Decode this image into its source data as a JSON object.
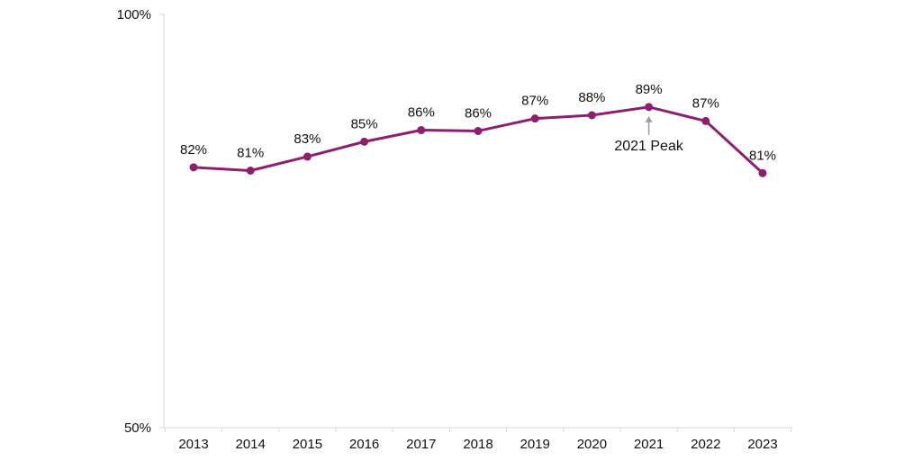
{
  "chart_data": {
    "type": "line",
    "title": "",
    "xlabel": "",
    "ylabel": "",
    "categories": [
      "2013",
      "2014",
      "2015",
      "2016",
      "2017",
      "2018",
      "2019",
      "2020",
      "2021",
      "2022",
      "2023"
    ],
    "series": [
      {
        "values": [
          81.5,
          81.1,
          82.8,
          84.6,
          86.0,
          85.9,
          87.4,
          87.8,
          88.8,
          87.1,
          80.8
        ],
        "labels": [
          "82%",
          "81%",
          "83%",
          "85%",
          "86%",
          "86%",
          "87%",
          "88%",
          "89%",
          "87%",
          "81%"
        ],
        "color": "#8e1f6e"
      }
    ],
    "ylim": [
      50,
      100
    ],
    "yticks": [
      {
        "value": 50,
        "label": "50%"
      },
      {
        "value": 100,
        "label": "100%"
      }
    ],
    "grid": false,
    "legend": "none",
    "annotations": [
      {
        "category": "2021",
        "text": "2021 Peak",
        "arrow_color": "#9e9e9e"
      }
    ]
  }
}
